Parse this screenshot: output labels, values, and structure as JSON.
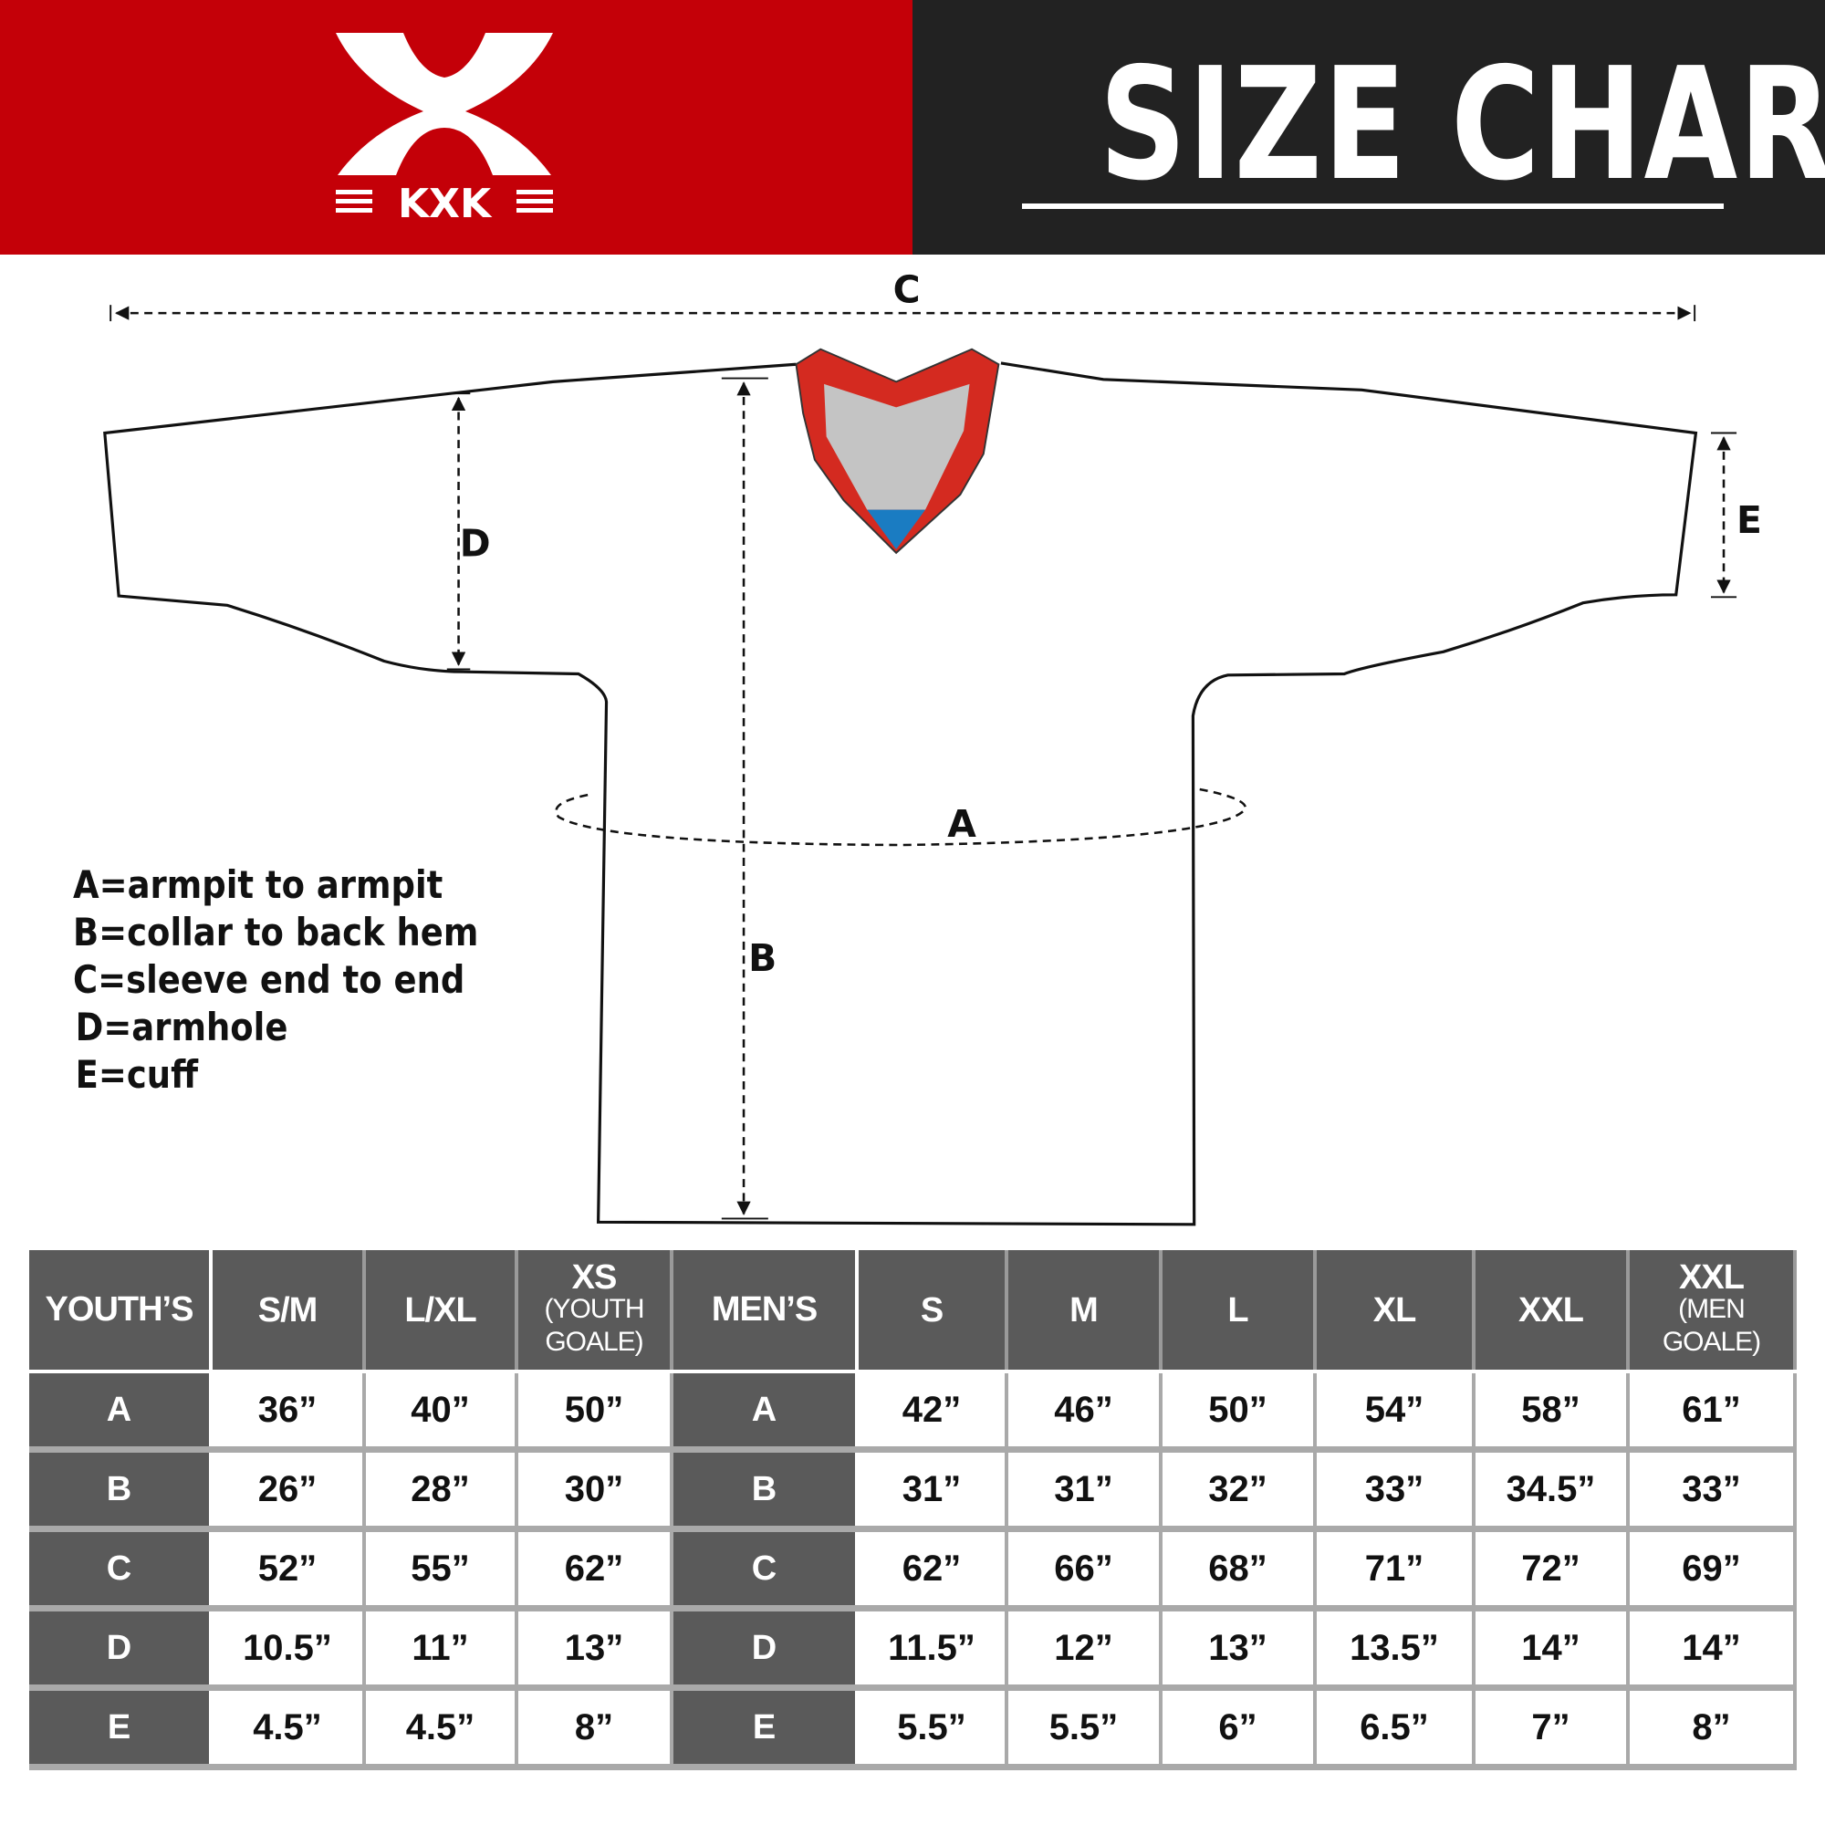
{
  "header": {
    "logo_text": "KXK",
    "title": "SIZE CHART",
    "colors": {
      "brand_red": "#c40008",
      "dark": "#222222"
    }
  },
  "diagram": {
    "labels": {
      "A": "A",
      "B": "B",
      "C": "C",
      "D": "D",
      "E": "E"
    },
    "legend": [
      "A=armpit to armpit",
      "B=collar to back hem",
      "C=sleeve end to end",
      "D=armhole",
      "E=cuff"
    ]
  },
  "table": {
    "youth": {
      "header": "YOUTH’S",
      "columns": [
        {
          "main": "S/M",
          "sub": ""
        },
        {
          "main": "L/XL",
          "sub": ""
        },
        {
          "main": "XS",
          "sub": "(YOUTH GOALE)"
        }
      ],
      "rows": [
        {
          "label": "A",
          "values": [
            "36”",
            "40”",
            "50”"
          ]
        },
        {
          "label": "B",
          "values": [
            "26”",
            "28”",
            "30”"
          ]
        },
        {
          "label": "C",
          "values": [
            "52”",
            "55”",
            "62”"
          ]
        },
        {
          "label": "D",
          "values": [
            "10.5”",
            "11”",
            "13”"
          ]
        },
        {
          "label": "E",
          "values": [
            "4.5”",
            "4.5”",
            "8”"
          ]
        }
      ]
    },
    "men": {
      "header": "MEN’S",
      "columns": [
        {
          "main": "S",
          "sub": ""
        },
        {
          "main": "M",
          "sub": ""
        },
        {
          "main": "L",
          "sub": ""
        },
        {
          "main": "XL",
          "sub": ""
        },
        {
          "main": "XXL",
          "sub": ""
        },
        {
          "main": "XXL",
          "sub": "(MEN GOALE)"
        }
      ],
      "rows": [
        {
          "label": "A",
          "values": [
            "42”",
            "46”",
            "50”",
            "54”",
            "58”",
            "61”"
          ]
        },
        {
          "label": "B",
          "values": [
            "31”",
            "31”",
            "32”",
            "33”",
            "34.5”",
            "33”"
          ]
        },
        {
          "label": "C",
          "values": [
            "62”",
            "66”",
            "68”",
            "71”",
            "72”",
            "69”"
          ]
        },
        {
          "label": "D",
          "values": [
            "11.5”",
            "12”",
            "13”",
            "13.5”",
            "14”",
            "14”"
          ]
        },
        {
          "label": "E",
          "values": [
            "5.5”",
            "5.5”",
            "6”",
            "6.5”",
            "7”",
            "8”"
          ]
        }
      ]
    }
  }
}
